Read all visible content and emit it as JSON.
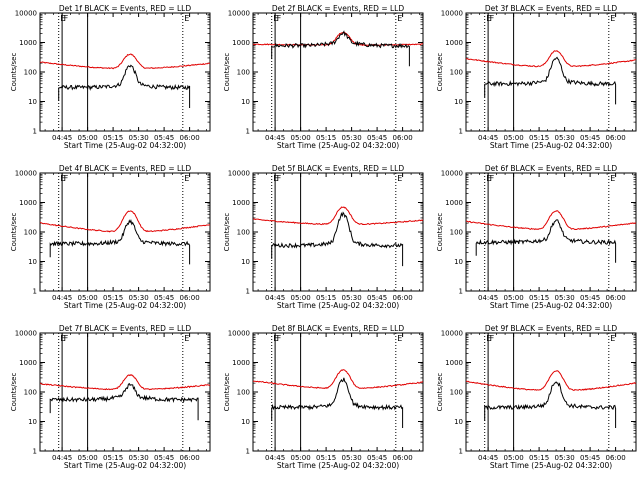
{
  "chart_data": {
    "type": "line",
    "y_scale": "log",
    "ylim": [
      1,
      10000
    ],
    "xlim": [
      "04:32",
      "06:12"
    ],
    "ylabel": "Counts/sec",
    "xlabel": "Start Time (25-Aug-02 04:32:00)",
    "x_tick_labels": [
      "04:45",
      "05:00",
      "05:15",
      "05:30",
      "05:45",
      "06:00"
    ],
    "x_ticks": [
      "04:45",
      "05:00",
      "05:15",
      "05:30",
      "05:45",
      "06:00"
    ],
    "y_tick_labels": [
      "1",
      "10",
      "100",
      "1000",
      "10000"
    ],
    "y_ticks": [
      1,
      10,
      100,
      1000,
      10000
    ],
    "markers": [
      {
        "label": "E",
        "time": "04:43",
        "style": "dotted"
      },
      {
        "label": "F",
        "time": "04:45",
        "style": "solid"
      },
      {
        "label": "",
        "time": "05:00",
        "style": "solid"
      },
      {
        "label": "E",
        "time": "05:56",
        "style": "dotted"
      }
    ],
    "peak_time": "05:25",
    "series_colors": {
      "events": "#000000",
      "lld": "#e00000"
    },
    "panels": [
      {
        "title": "Det 1f BLACK = Events, RED = LLD",
        "events": {
          "base": 30,
          "peak": 160,
          "start": "04:43",
          "end": "06:00"
        },
        "lld": {
          "base": 130,
          "edge": 240,
          "peak": 400
        }
      },
      {
        "title": "Det 2f BLACK = Events, RED = LLD",
        "events": {
          "base": 780,
          "peak": 1900,
          "start": "04:43",
          "end": "06:04"
        },
        "lld": {
          "base": 820,
          "edge": 900,
          "peak": 2200
        }
      },
      {
        "title": "Det 3f BLACK = Events, RED = LLD",
        "events": {
          "base": 40,
          "peak": 280,
          "start": "04:43",
          "end": "06:00"
        },
        "lld": {
          "base": 150,
          "edge": 320,
          "peak": 520
        }
      },
      {
        "title": "Det 4f BLACK = Events, RED = LLD",
        "events": {
          "base": 40,
          "peak": 220,
          "start": "04:38",
          "end": "06:00"
        },
        "lld": {
          "base": 100,
          "edge": 230,
          "peak": 520
        }
      },
      {
        "title": "Det 5f BLACK = Events, RED = LLD",
        "events": {
          "base": 35,
          "peak": 400,
          "start": "04:43",
          "end": "06:00"
        },
        "lld": {
          "base": 180,
          "edge": 300,
          "peak": 700
        }
      },
      {
        "title": "Det 6f BLACK = Events, RED = LLD",
        "events": {
          "base": 45,
          "peak": 230,
          "start": "04:38",
          "end": "06:00"
        },
        "lld": {
          "base": 120,
          "edge": 260,
          "peak": 520
        }
      },
      {
        "title": "Det 7f BLACK = Events, RED = LLD",
        "events": {
          "base": 55,
          "peak": 160,
          "start": "04:38",
          "end": "06:05"
        },
        "lld": {
          "base": 120,
          "edge": 210,
          "peak": 380
        }
      },
      {
        "title": "Det 8f BLACK = Events, RED = LLD",
        "events": {
          "base": 30,
          "peak": 260,
          "start": "04:43",
          "end": "06:00"
        },
        "lld": {
          "base": 130,
          "edge": 270,
          "peak": 560
        }
      },
      {
        "title": "Det 9f BLACK = Events, RED = LLD",
        "events": {
          "base": 30,
          "peak": 220,
          "start": "04:43",
          "end": "06:00"
        },
        "lld": {
          "base": 110,
          "edge": 260,
          "peak": 520
        }
      }
    ]
  }
}
